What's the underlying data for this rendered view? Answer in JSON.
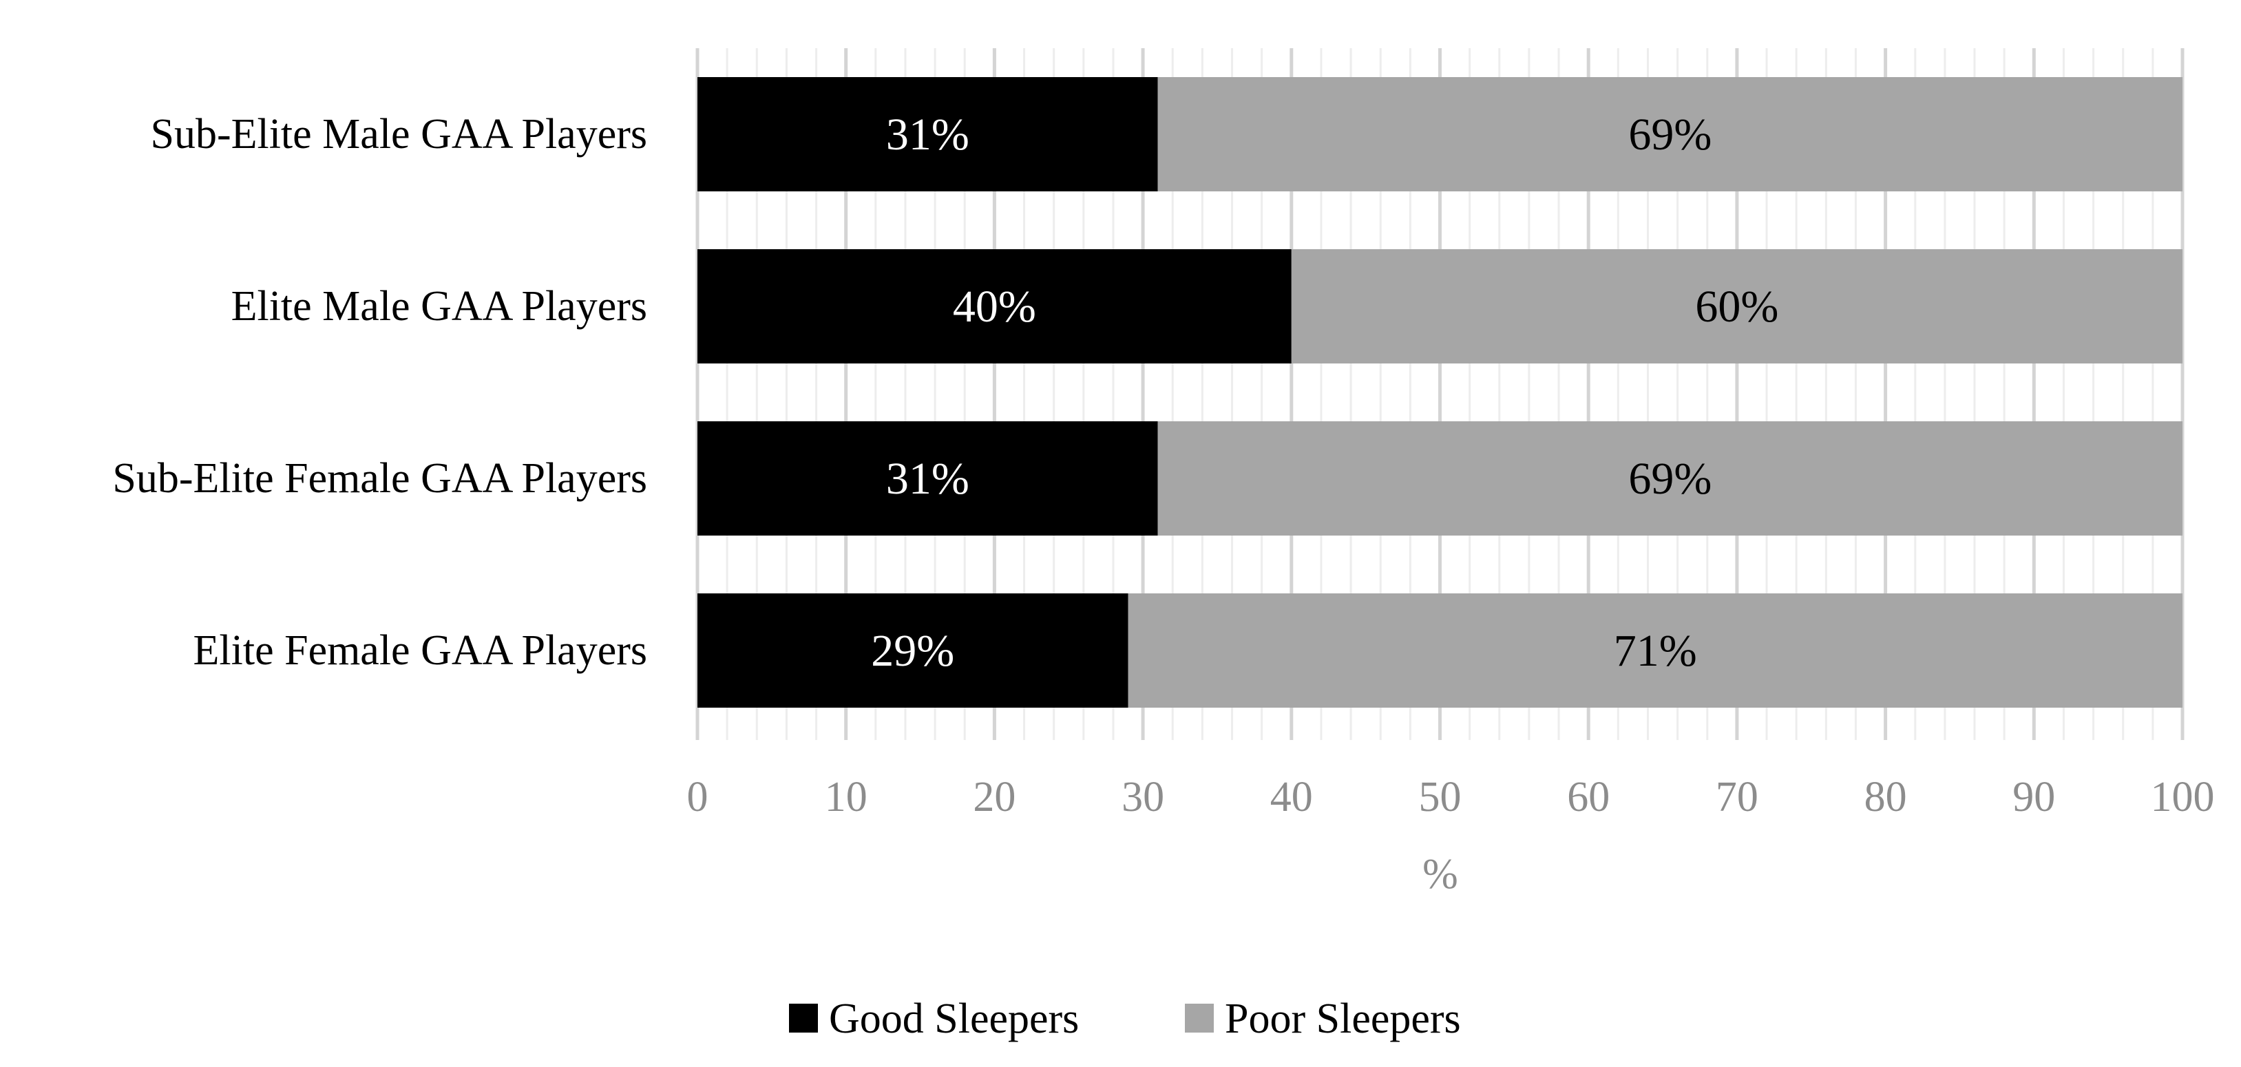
{
  "chart_data": {
    "type": "bar",
    "orientation": "horizontal",
    "stacked": true,
    "categories": [
      "Sub-Elite Male GAA Players",
      "Elite Male GAA Players",
      "Sub-Elite Female GAA Players",
      "Elite Female GAA Players"
    ],
    "series": [
      {
        "name": "Good Sleepers",
        "color": "#000000",
        "label_color": "#ffffff",
        "values": [
          31,
          40,
          31,
          29
        ],
        "labels": [
          "31%",
          "40%",
          "31%",
          "29%"
        ]
      },
      {
        "name": "Poor Sleepers",
        "color": "#a6a6a6",
        "label_color": "#000000",
        "values": [
          69,
          60,
          69,
          71
        ],
        "labels": [
          "69%",
          "60%",
          "69%",
          "71%"
        ]
      }
    ],
    "xlabel": "%",
    "xlim": [
      0,
      100
    ],
    "xticks": [
      "0",
      "10",
      "20",
      "30",
      "40",
      "50",
      "60",
      "70",
      "80",
      "90",
      "100"
    ],
    "grid": true,
    "minor_grid": true,
    "legend_position": "bottom"
  }
}
